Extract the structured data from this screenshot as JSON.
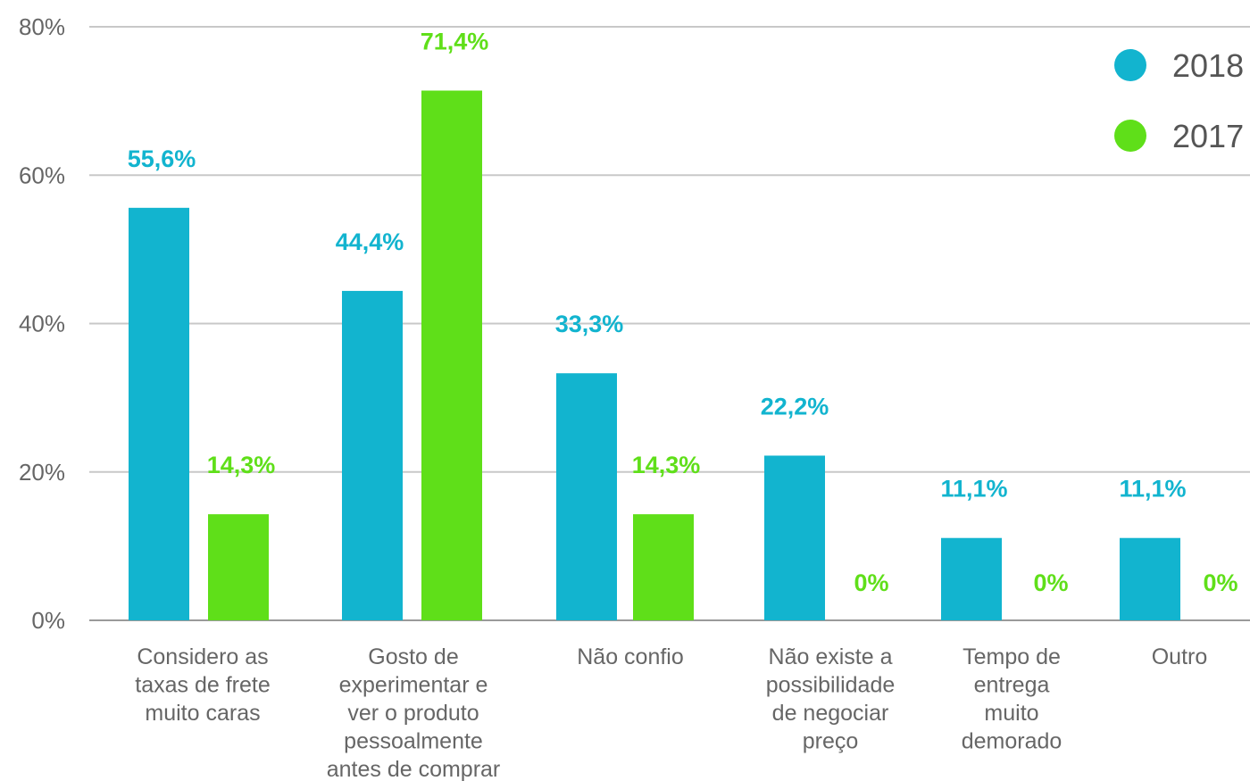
{
  "chart_data": {
    "type": "bar",
    "categories": [
      [
        "Considero as",
        "taxas de frete",
        "muito caras"
      ],
      [
        "Gosto de",
        "experimentar e",
        "ver o produto",
        "pessoalmente",
        "antes de comprar"
      ],
      [
        "Não confio"
      ],
      [
        "Não existe a",
        "possibilidade",
        "de negociar",
        "preço"
      ],
      [
        "Tempo de",
        "entrega",
        "muito",
        "demorado"
      ],
      [
        "Outro"
      ]
    ],
    "series": [
      {
        "name": "2018",
        "color": "#12b4cf",
        "values": [
          55.6,
          44.4,
          33.3,
          22.2,
          11.1,
          11.1
        ],
        "labels": [
          "55,6%",
          "44,4%",
          "33,3%",
          "22,2%",
          "11,1%",
          "11,1%"
        ]
      },
      {
        "name": "2017",
        "color": "#5fdf19",
        "values": [
          14.3,
          71.4,
          14.3,
          0,
          0,
          0
        ],
        "labels": [
          "14,3%",
          "71,4%",
          "14,3%",
          "0%",
          "0%",
          "0%"
        ]
      }
    ],
    "yticks": [
      "0%",
      "20%",
      "40%",
      "60%",
      "80%"
    ],
    "ylim": [
      0,
      80
    ],
    "grid": true,
    "legend": "top-right",
    "title": "",
    "xlabel": "",
    "ylabel": ""
  }
}
